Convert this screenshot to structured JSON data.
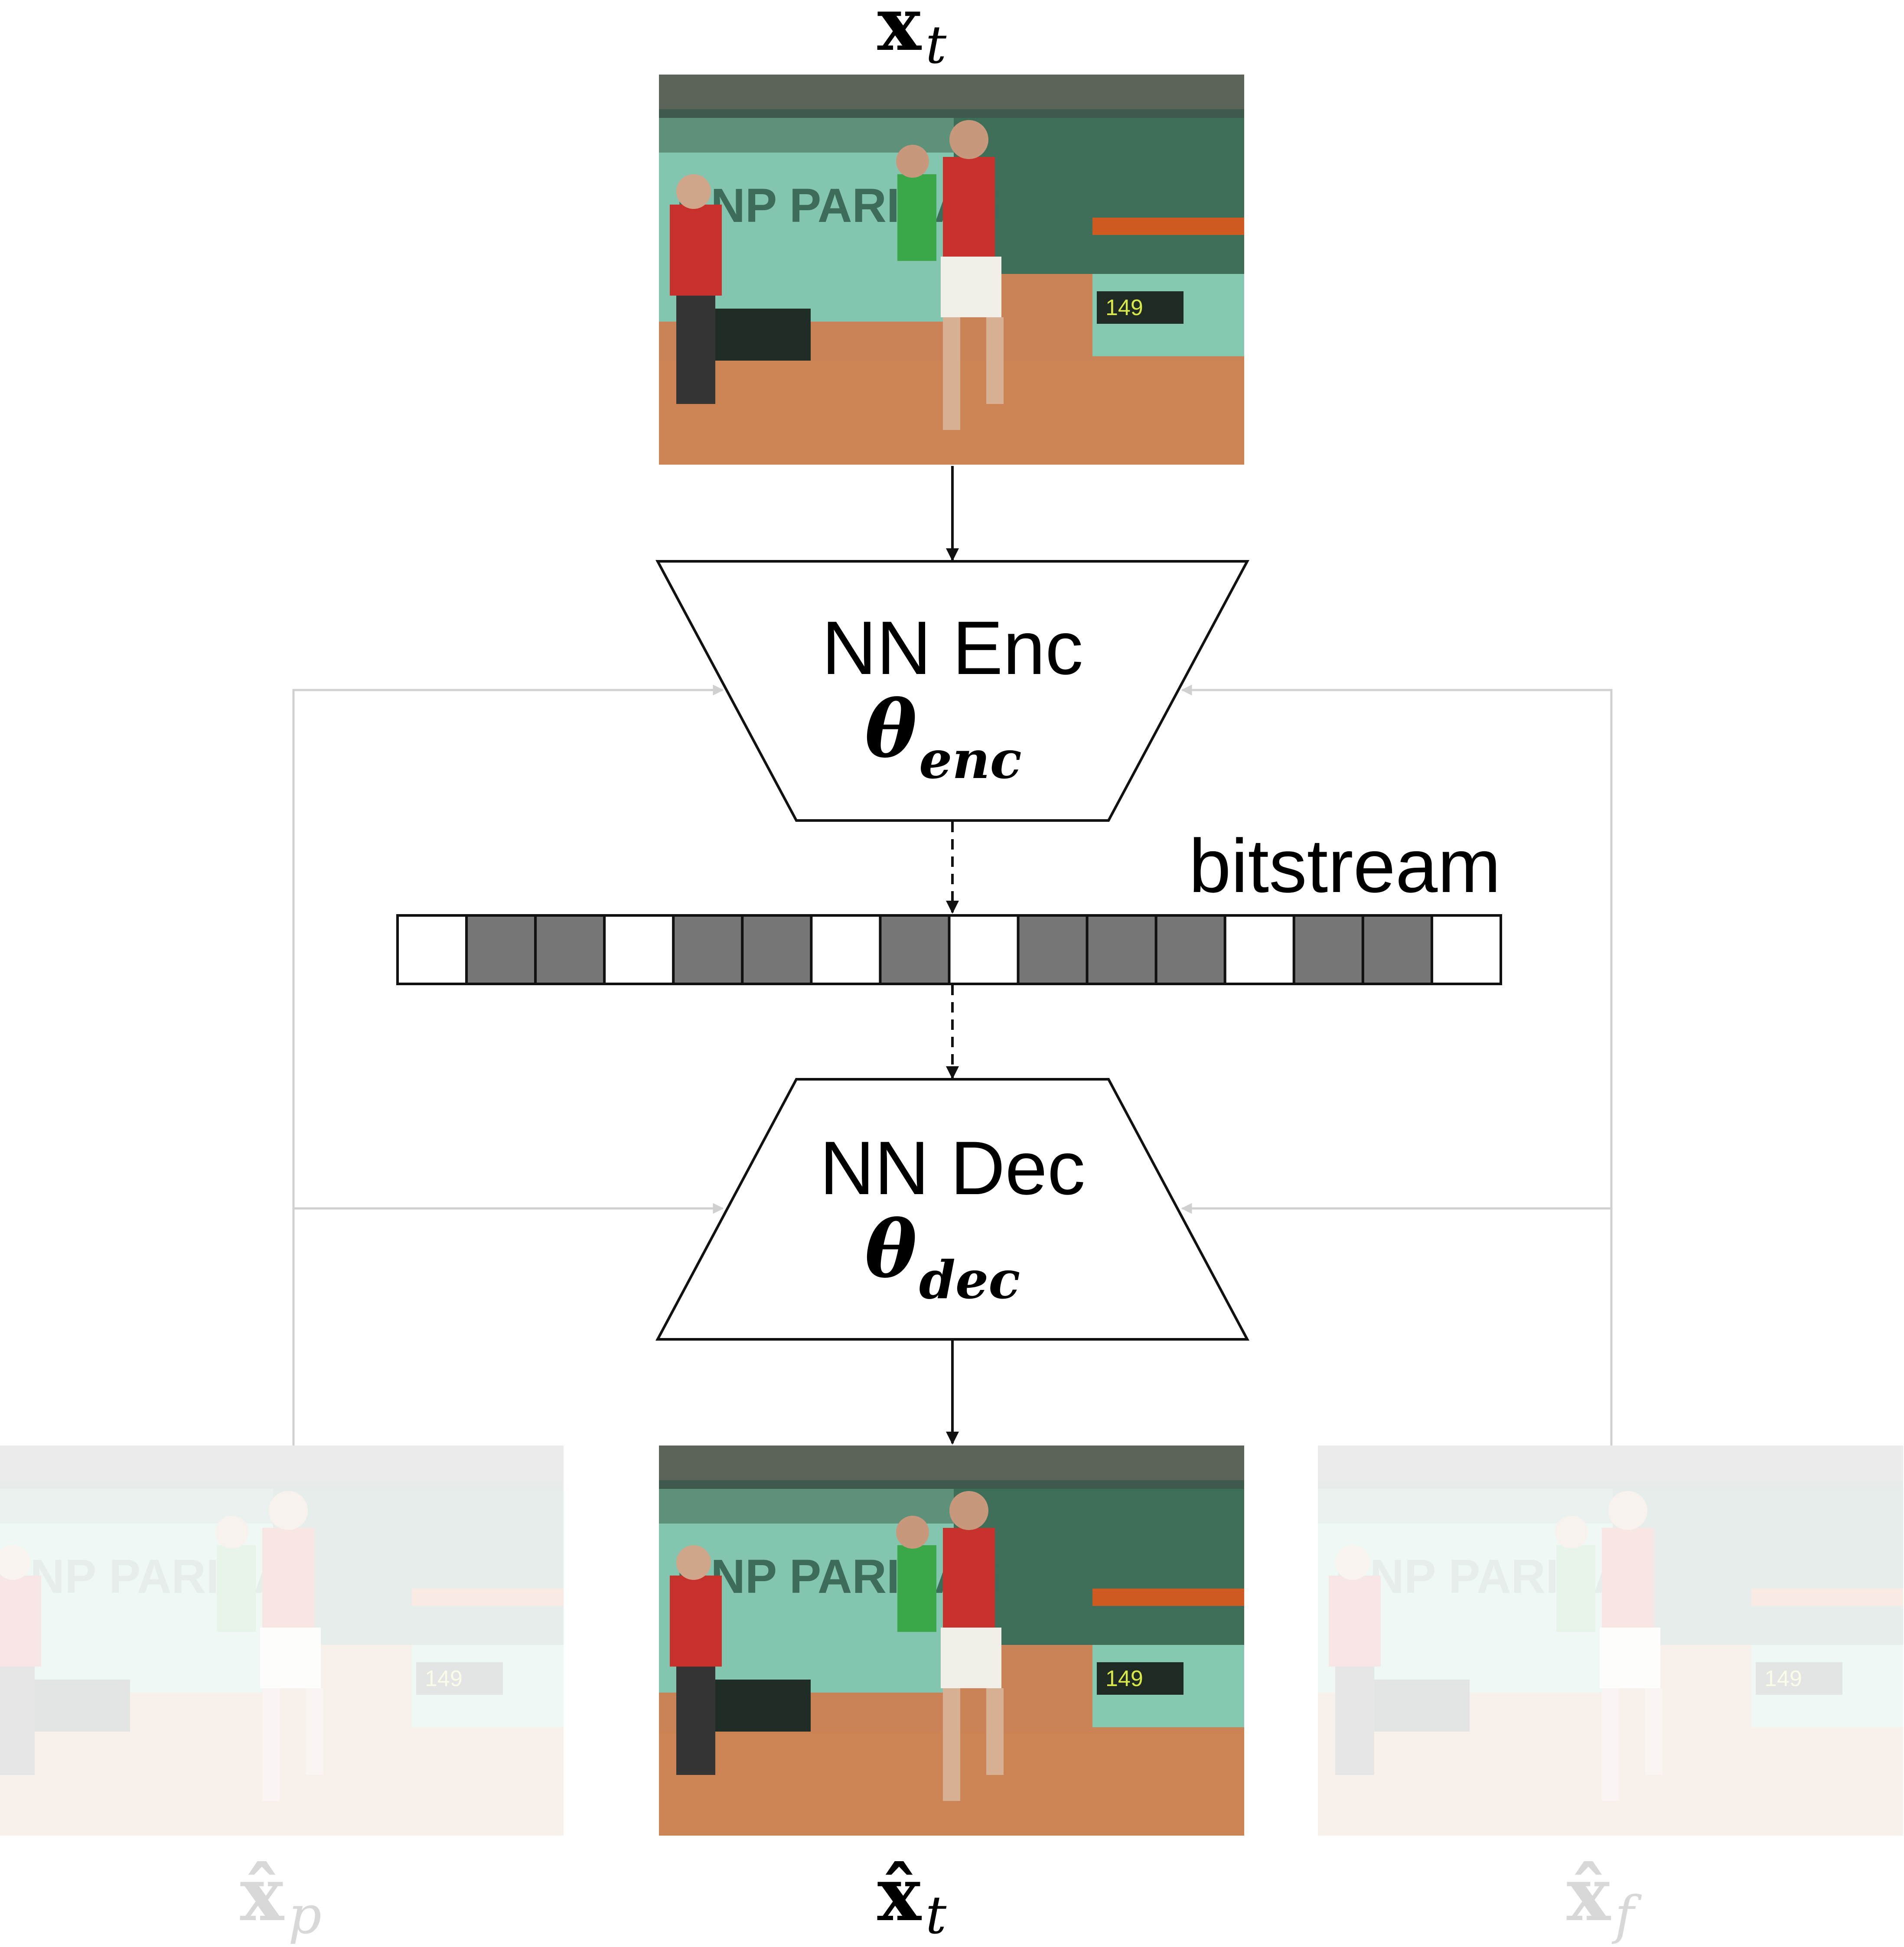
{
  "labels": {
    "input_frame": "x",
    "input_frame_sub": "t",
    "recon_frame": "x̂",
    "recon_frame_sub": "t",
    "past_frame": "x̂",
    "past_frame_sub": "p",
    "future_frame": "x̂",
    "future_frame_sub": "f"
  },
  "encoder": {
    "title": "NN Enc",
    "param": "θ",
    "param_sub": "enc"
  },
  "decoder": {
    "title": "NN Dec",
    "param": "θ",
    "param_sub": "dec"
  },
  "bitstream": {
    "label": "bitstream",
    "bits": [
      0,
      1,
      1,
      0,
      1,
      1,
      0,
      1,
      0,
      1,
      1,
      1,
      0,
      1,
      1,
      0
    ]
  },
  "colors": {
    "line": "#111111",
    "faded_line": "#d0d0d0",
    "bit_filled": "#777777",
    "bit_empty": "#ffffff",
    "faded_text": "#d8d8d8"
  }
}
